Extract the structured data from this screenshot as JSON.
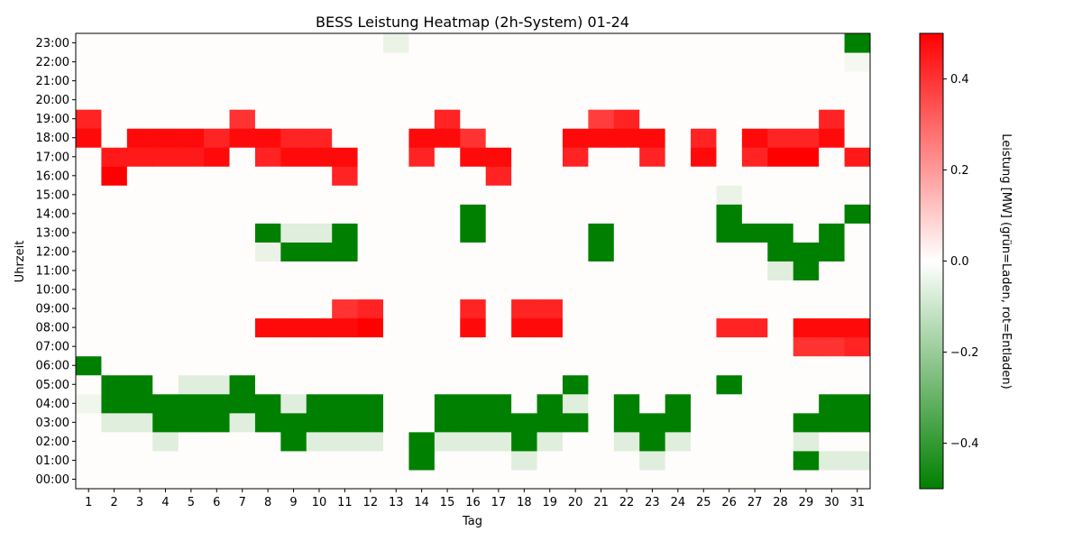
{
  "chart_data": {
    "type": "heatmap",
    "title": "BESS Leistung Heatmap (2h-System) 01-24",
    "xlabel": "Tag",
    "ylabel": "Uhrzeit",
    "x": [
      "1",
      "2",
      "3",
      "4",
      "5",
      "6",
      "7",
      "8",
      "9",
      "10",
      "11",
      "12",
      "13",
      "14",
      "15",
      "16",
      "17",
      "18",
      "19",
      "20",
      "21",
      "22",
      "23",
      "24",
      "25",
      "26",
      "27",
      "28",
      "29",
      "30",
      "31"
    ],
    "y": [
      "00:00",
      "01:00",
      "02:00",
      "03:00",
      "04:00",
      "05:00",
      "06:00",
      "07:00",
      "08:00",
      "09:00",
      "10:00",
      "11:00",
      "12:00",
      "13:00",
      "14:00",
      "15:00",
      "16:00",
      "17:00",
      "18:00",
      "19:00",
      "20:00",
      "21:00",
      "22:00",
      "23:00"
    ],
    "values": [
      [
        0,
        0,
        0,
        0,
        0,
        0,
        0,
        0,
        0,
        0,
        0,
        0,
        0,
        0,
        0,
        0,
        0,
        0,
        0,
        0,
        0,
        0,
        0,
        0,
        0,
        0,
        0,
        0,
        0,
        0,
        0
      ],
      [
        0,
        0,
        0,
        0,
        0,
        0,
        0,
        0,
        0,
        0,
        0,
        0,
        0,
        -0.5,
        0,
        0,
        0,
        -0.06,
        0,
        0,
        0,
        0,
        -0.06,
        0,
        0,
        0,
        0,
        0,
        -0.5,
        -0.06,
        -0.06
      ],
      [
        0,
        0,
        0,
        -0.06,
        0,
        0,
        0,
        0,
        -0.5,
        -0.06,
        -0.06,
        -0.06,
        0,
        -0.5,
        -0.06,
        -0.06,
        -0.06,
        -0.5,
        -0.06,
        0,
        0,
        -0.06,
        -0.5,
        -0.06,
        0,
        0,
        0,
        0,
        -0.06,
        0,
        0
      ],
      [
        0,
        -0.06,
        -0.06,
        -0.5,
        -0.5,
        -0.5,
        -0.06,
        -0.5,
        -0.5,
        -0.5,
        -0.5,
        -0.5,
        0,
        0,
        -0.5,
        -0.5,
        -0.5,
        -0.5,
        -0.5,
        -0.5,
        0,
        -0.5,
        -0.5,
        -0.5,
        0,
        0,
        0,
        0,
        -0.5,
        -0.5,
        -0.5
      ],
      [
        -0.03,
        -0.5,
        -0.5,
        -0.5,
        -0.5,
        -0.5,
        -0.5,
        -0.5,
        -0.06,
        -0.5,
        -0.5,
        -0.5,
        0,
        0,
        -0.5,
        -0.5,
        -0.5,
        0,
        -0.5,
        -0.06,
        0,
        -0.5,
        0,
        -0.5,
        0,
        0,
        0,
        0,
        0,
        -0.5,
        -0.5
      ],
      [
        0,
        -0.5,
        -0.5,
        0,
        -0.06,
        -0.06,
        -0.5,
        0,
        0,
        0,
        0,
        0,
        0,
        0,
        0,
        0,
        0,
        0,
        0,
        -0.5,
        0,
        0,
        0,
        0,
        0,
        -0.5,
        0,
        0,
        0,
        0,
        0
      ],
      [
        -0.5,
        0,
        0,
        0,
        0,
        0,
        0,
        0,
        0,
        0,
        0,
        0,
        0,
        0,
        0,
        0,
        0,
        0,
        0,
        0,
        0,
        0,
        0,
        0,
        0,
        0,
        0,
        0,
        0,
        0,
        0
      ],
      [
        0,
        0,
        0,
        0,
        0,
        0,
        0,
        0,
        0,
        0,
        0,
        0,
        0,
        0,
        0,
        0,
        0,
        0,
        0,
        0,
        0,
        0,
        0,
        0,
        0,
        0,
        0,
        0,
        0.4,
        0.4,
        0.43
      ],
      [
        0,
        0,
        0,
        0,
        0,
        0,
        0,
        0.48,
        0.48,
        0.48,
        0.48,
        0.5,
        0,
        0,
        0,
        0.48,
        0,
        0.48,
        0.48,
        0,
        0,
        0,
        0,
        0,
        0,
        0.43,
        0.43,
        0,
        0.48,
        0.48,
        0.48
      ],
      [
        0,
        0,
        0,
        0,
        0,
        0,
        0,
        0,
        0,
        0,
        0.4,
        0.43,
        0,
        0,
        0,
        0.43,
        0,
        0.43,
        0.43,
        0,
        0,
        0,
        0,
        0,
        0,
        0,
        0,
        0,
        0,
        0,
        0
      ],
      [
        0,
        0,
        0,
        0,
        0,
        0,
        0,
        0,
        0,
        0,
        0,
        0,
        0,
        0,
        0,
        0,
        0,
        0,
        0,
        0,
        0,
        0,
        0,
        0,
        0,
        0,
        0,
        0,
        0,
        0,
        0
      ],
      [
        0,
        0,
        0,
        0,
        0,
        0,
        0,
        0,
        0,
        0,
        0,
        0,
        0,
        0,
        0,
        0,
        0,
        0,
        0,
        0,
        0,
        0,
        0,
        0,
        0,
        0,
        0,
        -0.06,
        -0.5,
        0,
        0
      ],
      [
        0,
        0,
        0,
        0,
        0,
        0,
        0,
        -0.04,
        -0.5,
        -0.5,
        -0.5,
        0,
        0,
        0,
        0,
        0,
        0,
        0,
        0,
        0,
        -0.5,
        0,
        0,
        0,
        0,
        0,
        0,
        -0.5,
        -0.5,
        -0.5,
        0
      ],
      [
        0,
        0,
        0,
        0,
        0,
        0,
        0,
        -0.5,
        -0.06,
        -0.06,
        -0.5,
        0,
        0,
        0,
        0,
        -0.5,
        0,
        0,
        0,
        0,
        -0.5,
        0,
        0,
        0,
        0,
        -0.5,
        -0.5,
        -0.5,
        0,
        -0.5,
        0
      ],
      [
        0,
        0,
        0,
        0,
        0,
        0,
        0,
        0,
        0,
        0,
        0,
        0,
        0,
        0,
        0,
        -0.5,
        0,
        0,
        0,
        0,
        0,
        0,
        0,
        0,
        0,
        -0.5,
        0,
        0,
        0,
        0,
        -0.5
      ],
      [
        0,
        0,
        0,
        0,
        0,
        0,
        0,
        0,
        0,
        0,
        0,
        0,
        0,
        0,
        0,
        0,
        0,
        0,
        0,
        0,
        0,
        0,
        0,
        0,
        0,
        -0.04,
        0,
        0,
        0,
        0,
        0
      ],
      [
        0,
        0.5,
        0,
        0,
        0,
        0,
        0,
        0,
        0,
        0,
        0.43,
        0,
        0,
        0,
        0,
        0,
        0.43,
        0,
        0,
        0,
        0,
        0,
        0,
        0,
        0,
        0,
        0,
        0,
        0,
        0,
        0
      ],
      [
        0,
        0.45,
        0.45,
        0.45,
        0.45,
        0.48,
        0,
        0.43,
        0.48,
        0.48,
        0.48,
        0,
        0,
        0.43,
        0,
        0.48,
        0.48,
        0,
        0,
        0.43,
        0,
        0,
        0.43,
        0,
        0.48,
        0,
        0.43,
        0.5,
        0.5,
        0,
        0.45
      ],
      [
        0.48,
        0,
        0.48,
        0.48,
        0.48,
        0.43,
        0.48,
        0.48,
        0.43,
        0.43,
        0,
        0,
        0,
        0.48,
        0.48,
        0.4,
        0,
        0,
        0,
        0.48,
        0.48,
        0.48,
        0.48,
        0,
        0.43,
        0,
        0.48,
        0.43,
        0.43,
        0.48,
        0
      ],
      [
        0.43,
        0,
        0,
        0,
        0,
        0,
        0.4,
        0,
        0,
        0,
        0,
        0,
        0,
        0,
        0.43,
        0,
        0,
        0,
        0,
        0,
        0.38,
        0.43,
        0,
        0,
        0,
        0,
        0,
        0,
        0,
        0.43,
        0
      ],
      [
        0,
        0,
        0,
        0,
        0,
        0,
        0,
        0,
        0,
        0,
        0,
        0,
        0,
        0,
        0,
        0,
        0,
        0,
        0,
        0,
        0,
        0,
        0,
        0,
        0,
        0,
        0,
        0,
        0,
        0,
        0
      ],
      [
        0,
        0,
        0,
        0,
        0,
        0,
        0,
        0,
        0,
        0,
        0,
        0,
        0,
        0,
        0,
        0,
        0,
        0,
        0,
        0,
        0,
        0,
        0,
        0,
        0,
        0,
        0,
        0,
        0,
        0,
        0
      ],
      [
        0,
        0,
        0,
        0,
        0,
        0,
        0,
        0,
        0,
        0,
        0,
        0,
        0,
        0,
        0,
        0,
        0,
        0,
        0,
        0,
        0,
        0,
        0,
        0,
        0,
        0,
        0,
        0,
        0,
        0,
        -0.02
      ],
      [
        0,
        0,
        0,
        0,
        0,
        0,
        0,
        0,
        0,
        0,
        0,
        0,
        -0.04,
        0,
        0,
        0,
        0,
        0,
        0,
        0,
        0,
        0,
        0,
        0,
        0,
        0,
        0,
        0,
        0,
        0,
        -0.5
      ]
    ],
    "zlim": [
      -0.5,
      0.5
    ],
    "colorbar": {
      "label": "Leistung [MW] (grün=Laden, rot=Entladen)",
      "ticks": [
        -0.4,
        -0.2,
        0.0,
        0.2,
        0.4
      ],
      "tick_labels": [
        "−0.4",
        "−0.2",
        "0.0",
        "0.2",
        "0.4"
      ]
    },
    "colors": {
      "negative": "#008000",
      "neutral": "#fffdfb",
      "positive": "#ff0000"
    }
  }
}
